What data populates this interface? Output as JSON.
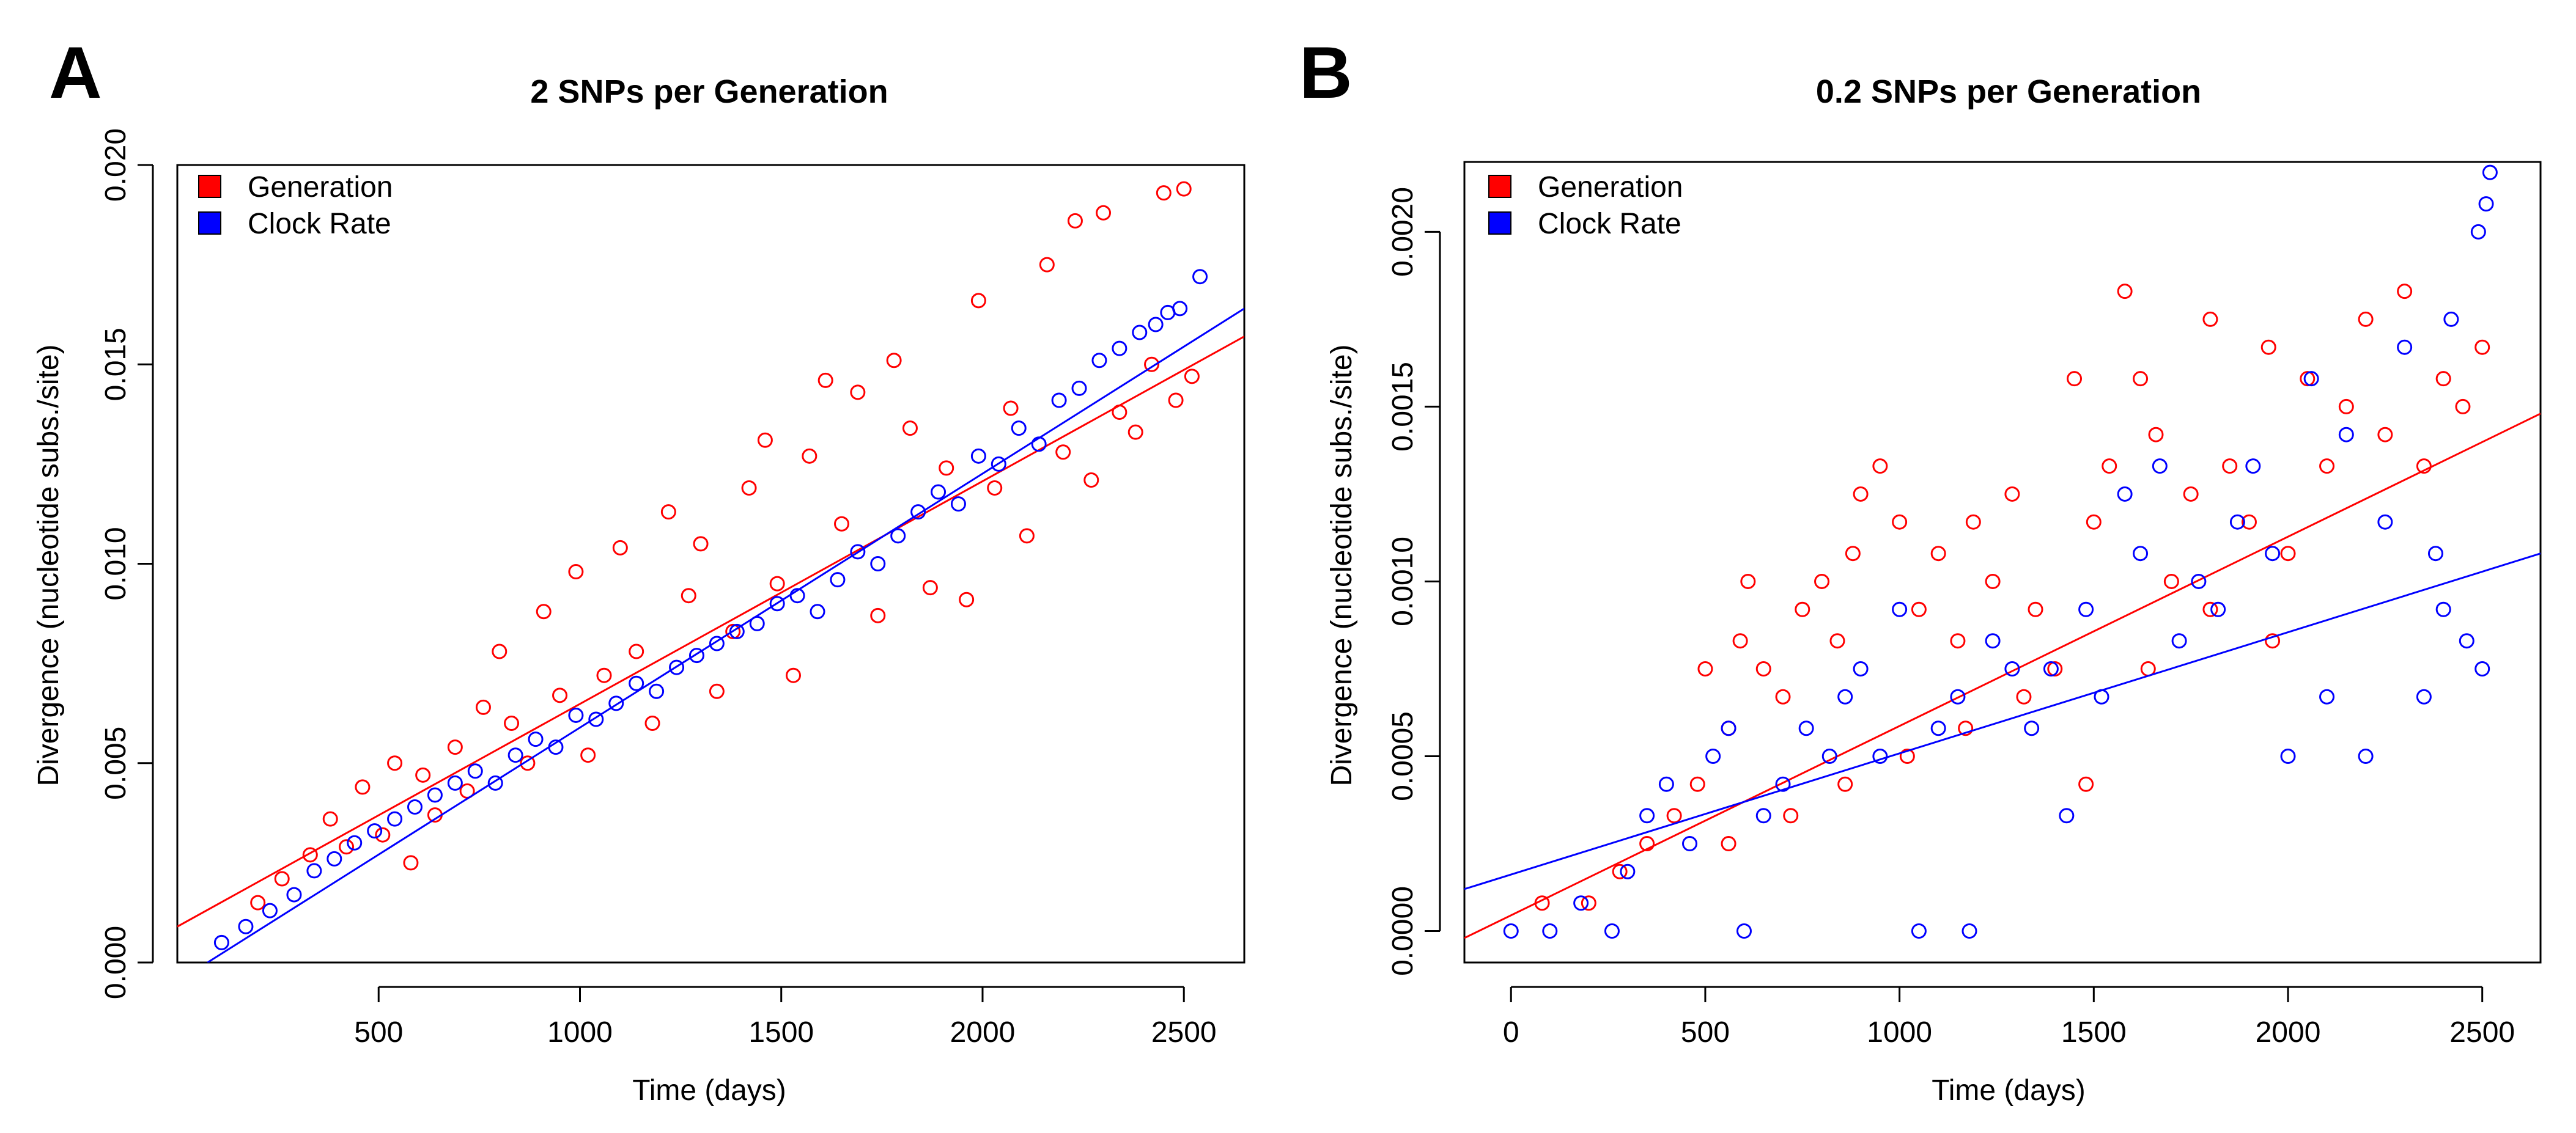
{
  "chart_data": [
    {
      "panel": "A",
      "type": "scatter",
      "title": "2 SNPs per Generation",
      "xlabel": "Time (days)",
      "ylabel": "Divergence (nucleotide subs./site)",
      "xlim": [
        0,
        2650
      ],
      "ylim": [
        0,
        0.02
      ],
      "x_ticks": [
        "500",
        "1000",
        "1500",
        "2000",
        "2500"
      ],
      "y_ticks": [
        "0.000",
        "0.005",
        "0.010",
        "0.015",
        "0.020"
      ],
      "grid": false,
      "legend_position": "top-left",
      "series": [
        {
          "name": "Generation",
          "color": "#ff0000",
          "trend": {
            "x": [
              0,
              2650
            ],
            "y": [
              0.0009,
              0.0157
            ]
          },
          "points": [
            [
              200,
              0.0015
            ],
            [
              260,
              0.0021
            ],
            [
              330,
              0.0027
            ],
            [
              380,
              0.0036
            ],
            [
              420,
              0.0029
            ],
            [
              460,
              0.0044
            ],
            [
              510,
              0.0032
            ],
            [
              540,
              0.005
            ],
            [
              580,
              0.0025
            ],
            [
              610,
              0.0047
            ],
            [
              640,
              0.0037
            ],
            [
              690,
              0.0054
            ],
            [
              720,
              0.0043
            ],
            [
              760,
              0.0064
            ],
            [
              800,
              0.0078
            ],
            [
              830,
              0.006
            ],
            [
              870,
              0.005
            ],
            [
              910,
              0.0088
            ],
            [
              950,
              0.0067
            ],
            [
              990,
              0.0098
            ],
            [
              1020,
              0.0052
            ],
            [
              1060,
              0.0072
            ],
            [
              1100,
              0.0104
            ],
            [
              1140,
              0.0078
            ],
            [
              1180,
              0.006
            ],
            [
              1220,
              0.0113
            ],
            [
              1270,
              0.0092
            ],
            [
              1300,
              0.0105
            ],
            [
              1340,
              0.0068
            ],
            [
              1380,
              0.0083
            ],
            [
              1420,
              0.0119
            ],
            [
              1460,
              0.0131
            ],
            [
              1490,
              0.0095
            ],
            [
              1530,
              0.0072
            ],
            [
              1570,
              0.0127
            ],
            [
              1610,
              0.0146
            ],
            [
              1650,
              0.011
            ],
            [
              1690,
              0.0143
            ],
            [
              1740,
              0.0087
            ],
            [
              1780,
              0.0151
            ],
            [
              1820,
              0.0134
            ],
            [
              1870,
              0.0094
            ],
            [
              1910,
              0.0124
            ],
            [
              1960,
              0.0091
            ],
            [
              1990,
              0.0166
            ],
            [
              2030,
              0.0119
            ],
            [
              2070,
              0.0139
            ],
            [
              2110,
              0.0107
            ],
            [
              2160,
              0.0175
            ],
            [
              2200,
              0.0128
            ],
            [
              2230,
              0.0186
            ],
            [
              2270,
              0.0121
            ],
            [
              2300,
              0.0188
            ],
            [
              2340,
              0.0138
            ],
            [
              2380,
              0.0133
            ],
            [
              2420,
              0.015
            ],
            [
              2450,
              0.0193
            ],
            [
              2480,
              0.0141
            ],
            [
              2500,
              0.0194
            ],
            [
              2520,
              0.0147
            ]
          ]
        },
        {
          "name": "Clock Rate",
          "color": "#0000ff",
          "trend": {
            "x": [
              75,
              2650
            ],
            "y": [
              0.0,
              0.0164
            ]
          },
          "points": [
            [
              110,
              0.0005
            ],
            [
              170,
              0.0009
            ],
            [
              230,
              0.0013
            ],
            [
              290,
              0.0017
            ],
            [
              340,
              0.0023
            ],
            [
              390,
              0.0026
            ],
            [
              440,
              0.003
            ],
            [
              490,
              0.0033
            ],
            [
              540,
              0.0036
            ],
            [
              590,
              0.0039
            ],
            [
              640,
              0.0042
            ],
            [
              690,
              0.0045
            ],
            [
              740,
              0.0048
            ],
            [
              790,
              0.0045
            ],
            [
              840,
              0.0052
            ],
            [
              890,
              0.0056
            ],
            [
              940,
              0.0054
            ],
            [
              990,
              0.0062
            ],
            [
              1040,
              0.0061
            ],
            [
              1090,
              0.0065
            ],
            [
              1140,
              0.007
            ],
            [
              1190,
              0.0068
            ],
            [
              1240,
              0.0074
            ],
            [
              1290,
              0.0077
            ],
            [
              1340,
              0.008
            ],
            [
              1390,
              0.0083
            ],
            [
              1440,
              0.0085
            ],
            [
              1490,
              0.009
            ],
            [
              1540,
              0.0092
            ],
            [
              1590,
              0.0088
            ],
            [
              1640,
              0.0096
            ],
            [
              1690,
              0.0103
            ],
            [
              1740,
              0.01
            ],
            [
              1790,
              0.0107
            ],
            [
              1840,
              0.0113
            ],
            [
              1890,
              0.0118
            ],
            [
              1940,
              0.0115
            ],
            [
              1990,
              0.0127
            ],
            [
              2040,
              0.0125
            ],
            [
              2090,
              0.0134
            ],
            [
              2140,
              0.013
            ],
            [
              2190,
              0.0141
            ],
            [
              2240,
              0.0144
            ],
            [
              2290,
              0.0151
            ],
            [
              2340,
              0.0154
            ],
            [
              2390,
              0.0158
            ],
            [
              2430,
              0.016
            ],
            [
              2460,
              0.0163
            ],
            [
              2490,
              0.0164
            ],
            [
              2540,
              0.0172
            ]
          ]
        }
      ]
    },
    {
      "panel": "B",
      "type": "scatter",
      "title": "0.2 SNPs per Generation",
      "xlabel": "Time (days)",
      "ylabel": "Divergence (nucleotide subs./site)",
      "xlim": [
        -120,
        2650
      ],
      "ylim": [
        -9e-05,
        0.0022
      ],
      "x_ticks": [
        "0",
        "500",
        "1000",
        "1500",
        "2000",
        "2500"
      ],
      "y_ticks": [
        "0.0000",
        "0.0005",
        "0.0010",
        "0.0015",
        "0.0020"
      ],
      "grid": false,
      "legend_position": "top-left",
      "series": [
        {
          "name": "Generation",
          "color": "#ff0000",
          "trend": {
            "x": [
              -120,
              2650
            ],
            "y": [
              -2e-05,
              0.00148
            ]
          },
          "points": [
            [
              80,
              8e-05
            ],
            [
              200,
              8e-05
            ],
            [
              280,
              0.00017
            ],
            [
              350,
              0.00025
            ],
            [
              420,
              0.00033
            ],
            [
              480,
              0.00042
            ],
            [
              500,
              0.00075
            ],
            [
              560,
              0.00058
            ],
            [
              590,
              0.00083
            ],
            [
              610,
              0.001
            ],
            [
              650,
              0.00075
            ],
            [
              700,
              0.00067
            ],
            [
              750,
              0.00092
            ],
            [
              800,
              0.001
            ],
            [
              840,
              0.00083
            ],
            [
              880,
              0.00108
            ],
            [
              900,
              0.00125
            ],
            [
              950,
              0.00133
            ],
            [
              1000,
              0.00117
            ],
            [
              1050,
              0.00092
            ],
            [
              1100,
              0.00108
            ],
            [
              1150,
              0.00083
            ],
            [
              1190,
              0.00117
            ],
            [
              1240,
              0.001
            ],
            [
              1290,
              0.00125
            ],
            [
              1350,
              0.00092
            ],
            [
              1400,
              0.00075
            ],
            [
              1450,
              0.00158
            ],
            [
              1500,
              0.00117
            ],
            [
              1540,
              0.00133
            ],
            [
              1580,
              0.00183
            ],
            [
              1620,
              0.00158
            ],
            [
              1660,
              0.00142
            ],
            [
              1700,
              0.001
            ],
            [
              1750,
              0.00125
            ],
            [
              1800,
              0.00175
            ],
            [
              1850,
              0.00133
            ],
            [
              1900,
              0.00117
            ],
            [
              1950,
              0.00167
            ],
            [
              2000,
              0.00108
            ],
            [
              2050,
              0.00158
            ],
            [
              2100,
              0.00133
            ],
            [
              2150,
              0.0015
            ],
            [
              2200,
              0.00175
            ],
            [
              2250,
              0.00142
            ],
            [
              2300,
              0.00183
            ],
            [
              2350,
              0.00133
            ],
            [
              2400,
              0.00158
            ],
            [
              2450,
              0.0015
            ],
            [
              2500,
              0.00167
            ],
            [
              560,
              0.00025
            ],
            [
              720,
              0.00033
            ],
            [
              860,
              0.00042
            ],
            [
              1020,
              0.0005
            ],
            [
              1170,
              0.00058
            ],
            [
              1320,
              0.00067
            ],
            [
              1480,
              0.00042
            ],
            [
              1640,
              0.00075
            ],
            [
              1800,
              0.00092
            ],
            [
              1960,
              0.00083
            ]
          ]
        },
        {
          "name": "Clock Rate",
          "color": "#0000ff",
          "trend": {
            "x": [
              -120,
              2650
            ],
            "y": [
              0.00012,
              0.00108
            ]
          },
          "points": [
            [
              0,
              0.0
            ],
            [
              100,
              0.0
            ],
            [
              180,
              8e-05
            ],
            [
              260,
              0.0
            ],
            [
              300,
              0.00017
            ],
            [
              350,
              0.00033
            ],
            [
              400,
              0.00042
            ],
            [
              460,
              0.00025
            ],
            [
              520,
              0.0005
            ],
            [
              560,
              0.00058
            ],
            [
              600,
              0.0
            ],
            [
              650,
              0.00033
            ],
            [
              700,
              0.00042
            ],
            [
              760,
              0.00058
            ],
            [
              820,
              0.0005
            ],
            [
              860,
              0.00067
            ],
            [
              900,
              0.00075
            ],
            [
              950,
              0.0005
            ],
            [
              1000,
              0.00092
            ],
            [
              1050,
              0.0
            ],
            [
              1100,
              0.00058
            ],
            [
              1150,
              0.00067
            ],
            [
              1180,
              0.0
            ],
            [
              1240,
              0.00083
            ],
            [
              1290,
              0.00075
            ],
            [
              1340,
              0.00058
            ],
            [
              1390,
              0.00075
            ],
            [
              1430,
              0.00033
            ],
            [
              1480,
              0.00092
            ],
            [
              1520,
              0.00067
            ],
            [
              1580,
              0.00125
            ],
            [
              1620,
              0.00108
            ],
            [
              1670,
              0.00133
            ],
            [
              1720,
              0.00083
            ],
            [
              1770,
              0.001
            ],
            [
              1820,
              0.00092
            ],
            [
              1870,
              0.00117
            ],
            [
              1910,
              0.00133
            ],
            [
              1960,
              0.00108
            ],
            [
              2000,
              0.0005
            ],
            [
              2060,
              0.00158
            ],
            [
              2100,
              0.00067
            ],
            [
              2150,
              0.00142
            ],
            [
              2200,
              0.0005
            ],
            [
              2250,
              0.00117
            ],
            [
              2300,
              0.00167
            ],
            [
              2350,
              0.00067
            ],
            [
              2400,
              0.00092
            ],
            [
              2420,
              0.00175
            ],
            [
              2460,
              0.00083
            ],
            [
              2490,
              0.002
            ],
            [
              2510,
              0.00208
            ],
            [
              2520,
              0.00217
            ],
            [
              2500,
              0.00075
            ],
            [
              2380,
              0.00108
            ]
          ]
        }
      ]
    }
  ]
}
